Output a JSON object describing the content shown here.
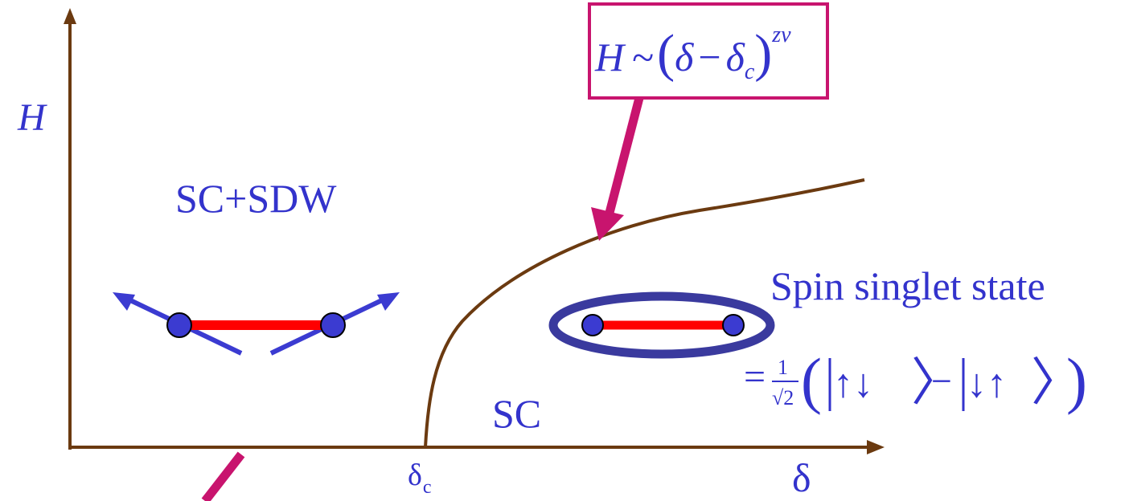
{
  "axes": {
    "y_label": "H",
    "x_label": "δ",
    "critical_tick_label": "δ",
    "critical_tick_subscript": "c"
  },
  "regions": {
    "left_label": "SC+SDW",
    "right_label": "SC"
  },
  "singlet": {
    "title": "Spin singlet state",
    "equals": "=",
    "frac_numerator": "1",
    "frac_denominator": "√2",
    "ket1": "↑↓",
    "minus": "−",
    "ket2": "↓↑"
  },
  "formula": {
    "H": "H",
    "tilde": "~",
    "delta": "δ",
    "minus": "−",
    "delta_c": "δ",
    "delta_c_sub": "c",
    "exponent": "zν"
  },
  "colors": {
    "axis": "#6b3a10",
    "curve": "#6b3a10",
    "text": "#3333cc",
    "accent": "#c8146e",
    "bond": "#ff0000",
    "spin": "#3b3bd1",
    "ellipse": "#3a3a9e"
  }
}
